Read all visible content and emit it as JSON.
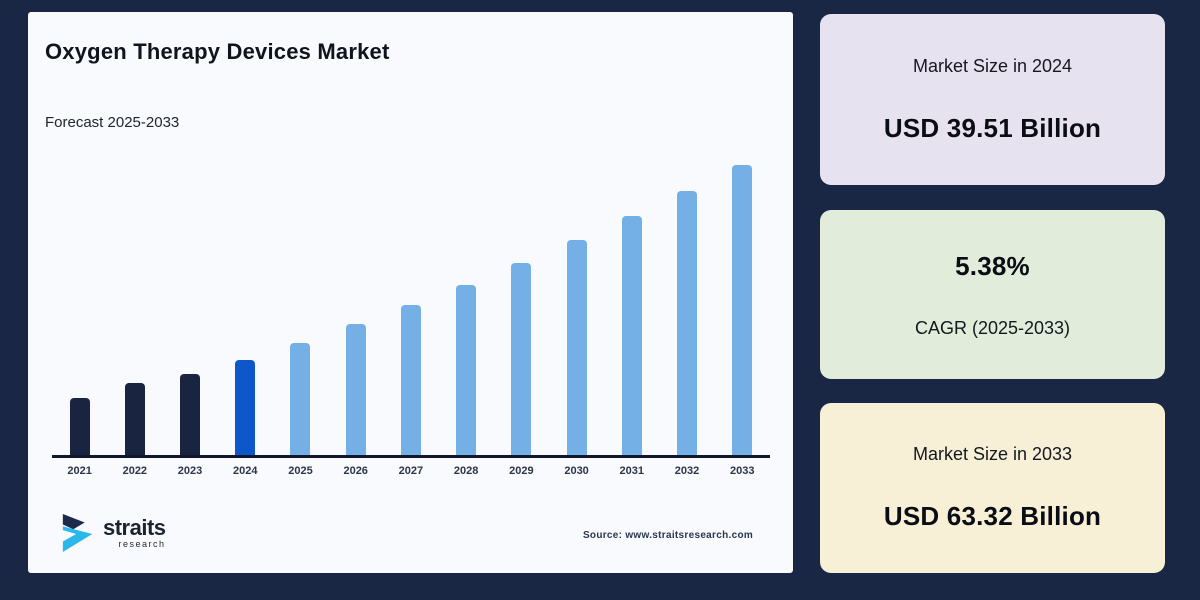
{
  "page": {
    "background": "#1a2744"
  },
  "chart_card": {
    "background": "#f8fafd",
    "source": "Source: www.straitsresearch.com",
    "logo": {
      "name": "straits",
      "subtext": "research",
      "icon_dark": "#1d2a4a",
      "icon_cyan": "#2bb7ea"
    }
  },
  "chart_data": {
    "type": "bar",
    "title": "Oxygen Therapy Devices Market",
    "subtitle": "Forecast 2025-2033",
    "unit": "USD Billion",
    "categories": [
      "2021",
      "2022",
      "2023",
      "2024",
      "2025",
      "2026",
      "2027",
      "2028",
      "2029",
      "2030",
      "2031",
      "2032",
      "2033"
    ],
    "values": [
      34.9,
      36.7,
      37.8,
      39.51,
      41.64,
      43.88,
      46.24,
      48.72,
      51.35,
      54.11,
      57.02,
      60.09,
      63.32
    ],
    "segments": [
      {
        "name": "historical",
        "years": [
          "2021",
          "2022",
          "2023"
        ],
        "color": "#192440"
      },
      {
        "name": "base-year",
        "years": [
          "2024"
        ],
        "color": "#0d57cb"
      },
      {
        "name": "forecast",
        "years": [
          "2025",
          "2026",
          "2027",
          "2028",
          "2029",
          "2030",
          "2031",
          "2032",
          "2033"
        ],
        "color": "#74afe5"
      }
    ],
    "ylim": [
      28,
      64
    ],
    "xlabel": "",
    "ylabel": "",
    "y_axis_shown": false,
    "grid": false,
    "legend": false,
    "value_labels_shown": false
  },
  "stats_panels": [
    {
      "label": "Market Size in 2024",
      "value": "USD 39.51 Billion",
      "bg_color": "#e7e2f0",
      "value_position": "bottom"
    },
    {
      "label": "CAGR (2025-2033)",
      "value": "5.38%",
      "bg_color": "#e2ecdb",
      "value_position": "top"
    },
    {
      "label": "Market Size in 2033",
      "value": "USD 63.32 Billion",
      "bg_color": "#f8f0d6",
      "value_position": "bottom"
    }
  ]
}
